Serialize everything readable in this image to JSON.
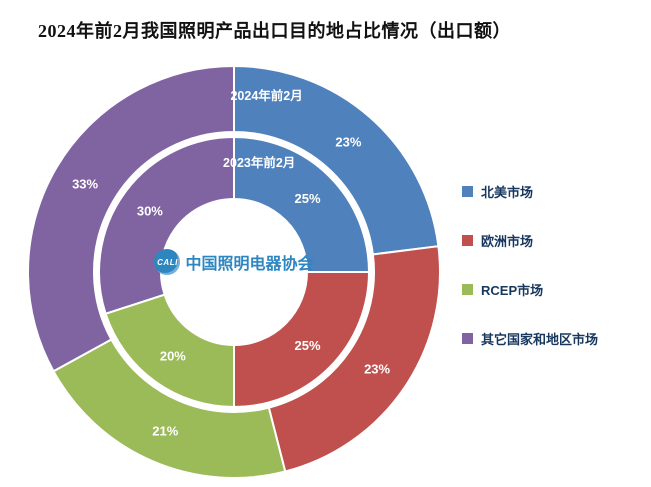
{
  "center_logo": {
    "mark": "CALI",
    "text": "中国照明电器协会"
  },
  "chart_data": {
    "type": "pie",
    "subtype": "nested-donut",
    "title": "2024年前2月我国照明产品出口目的地占比情况（出口额）",
    "categories": [
      "北美市场",
      "欧洲市场",
      "RCEP市场",
      "其它国家和地区市场"
    ],
    "colors": [
      "#4F81BD",
      "#C0504D",
      "#9BBB59",
      "#8064A2"
    ],
    "label_color": "#ffffff",
    "start_angle": "top",
    "direction": "clockwise",
    "legend_position": "right",
    "rings": [
      {
        "name": "2023年前2月",
        "position": "inner",
        "values": [
          25,
          25,
          20,
          30
        ],
        "labels": [
          "25%",
          "25%",
          "20%",
          "30%"
        ]
      },
      {
        "name": "2024年前2月",
        "position": "outer",
        "values": [
          23,
          23,
          21,
          33
        ],
        "labels": [
          "23%",
          "23%",
          "21%",
          "33%"
        ]
      }
    ]
  }
}
